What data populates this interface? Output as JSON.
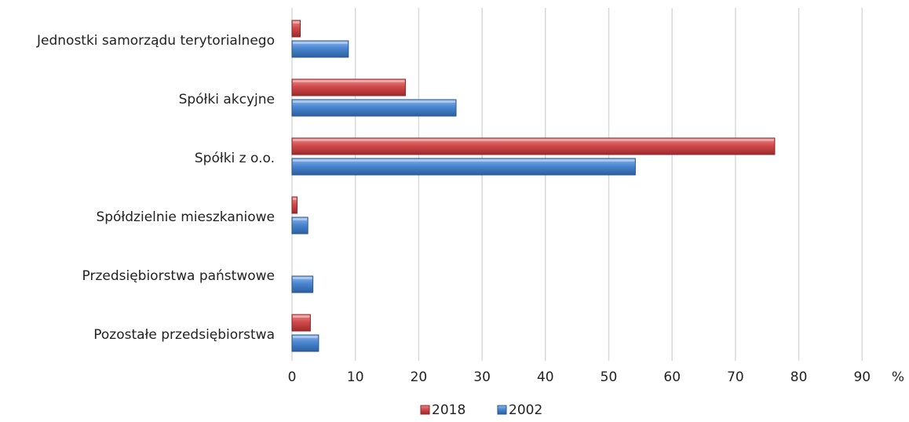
{
  "chart_data": {
    "type": "bar",
    "orientation": "horizontal",
    "categories": [
      "Jednostki samorządu terytorialnego",
      "Spółki akcyjne",
      "Spółki z o.o.",
      "Spółdzielnie mieszkaniowe",
      "Przedsiębiorstwa państwowe",
      "Pozostałe przedsiębiorstwa"
    ],
    "series": [
      {
        "name": "2018",
        "color": "#c0393b",
        "values": [
          1.3,
          17.9,
          76.2,
          0.8,
          0.0,
          2.9
        ]
      },
      {
        "name": "2002",
        "color": "#3f78c4",
        "values": [
          8.9,
          25.9,
          54.2,
          2.5,
          3.3,
          4.2
        ]
      }
    ],
    "x_ticks": [
      "0",
      "10",
      "20",
      "30",
      "40",
      "50",
      "60",
      "70",
      "80",
      "90"
    ],
    "xlim": [
      0,
      90
    ],
    "unit_label": "%",
    "grid": "vertical",
    "legend_position": "bottom"
  }
}
